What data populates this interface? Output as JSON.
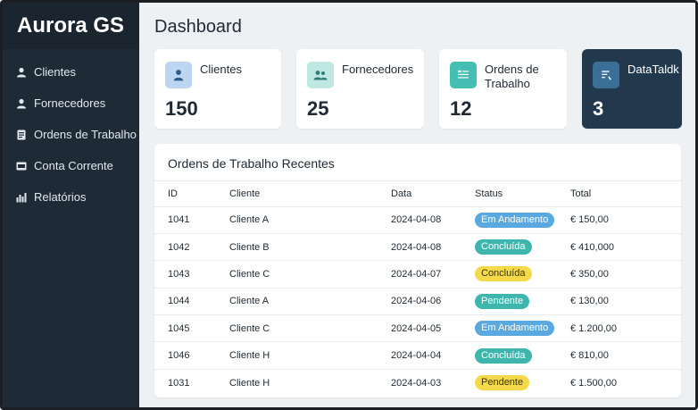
{
  "app": {
    "brand": "Aurora GS"
  },
  "sidebar": {
    "items": [
      {
        "label": "Clientes",
        "icon": "user-icon"
      },
      {
        "label": "Fornecedores",
        "icon": "user-icon"
      },
      {
        "label": "Ordens de Trabalho",
        "icon": "document-icon"
      },
      {
        "label": "Conta Corrente",
        "icon": "card-icon"
      },
      {
        "label": "Relatórios",
        "icon": "bar-chart-icon"
      }
    ]
  },
  "header": {
    "title": "Dashboard"
  },
  "cards": [
    {
      "label": "Clientes",
      "value": "150",
      "icon": "user-icon",
      "icon_bg": "#bcd6f2",
      "icon_color": "#2f5d8a"
    },
    {
      "label": "Fornecedores",
      "value": "25",
      "icon": "users-icon",
      "icon_bg": "#bfe7e3",
      "icon_color": "#2d7f76"
    },
    {
      "label": "Ordens de\nTrabalho",
      "value": "12",
      "icon": "list-icon",
      "icon_bg": "#45bfb4",
      "icon_color": "#ffffff"
    },
    {
      "label": "DataTaldk",
      "value": "3",
      "icon": "document-icon",
      "icon_bg": "#3a6f97",
      "icon_color": "#ffffff"
    }
  ],
  "orders": {
    "title": "Ordens de Trabalho Recentes",
    "columns": [
      "ID",
      "Cliente",
      "Data",
      "Status",
      "Total"
    ],
    "rows": [
      {
        "id": "1041",
        "client": "Cliente A",
        "date": "2024-04-08",
        "status": "Em Andamento",
        "status_color": "#5aa8e0",
        "status_text_color": "#ffffff",
        "total": "€ 150,00"
      },
      {
        "id": "1042",
        "client": "Cliente B",
        "date": "2024-04-08",
        "status": "Concluída",
        "status_color": "#3fb6ad",
        "status_text_color": "#ffffff",
        "total": "€ 410,000"
      },
      {
        "id": "1043",
        "client": "Cliente C",
        "date": "2024-04-07",
        "status": "Concluída",
        "status_color": "#f4da4a",
        "status_text_color": "#3a3210",
        "total": "€ 350,00"
      },
      {
        "id": "1044",
        "client": "Cliente A",
        "date": "2024-04-06",
        "status": "Pendente",
        "status_color": "#3fb6ad",
        "status_text_color": "#ffffff",
        "total": "€ 130,00"
      },
      {
        "id": "1045",
        "client": "Cliente C",
        "date": "2024-04-05",
        "status": "Em Andamento",
        "status_color": "#5aa8e0",
        "status_text_color": "#ffffff",
        "total": "€ 1.200,00"
      },
      {
        "id": "1046",
        "client": "Cliente H",
        "date": "2024-04-04",
        "status": "Concluída",
        "status_color": "#3fb6ad",
        "status_text_color": "#ffffff",
        "total": "€ 810,00"
      },
      {
        "id": "1031",
        "client": "Cliente H",
        "date": "2024-04-03",
        "status": "Pendente",
        "status_color": "#f4da4a",
        "status_text_color": "#3a3210",
        "total": "€ 1.500,00"
      }
    ]
  }
}
